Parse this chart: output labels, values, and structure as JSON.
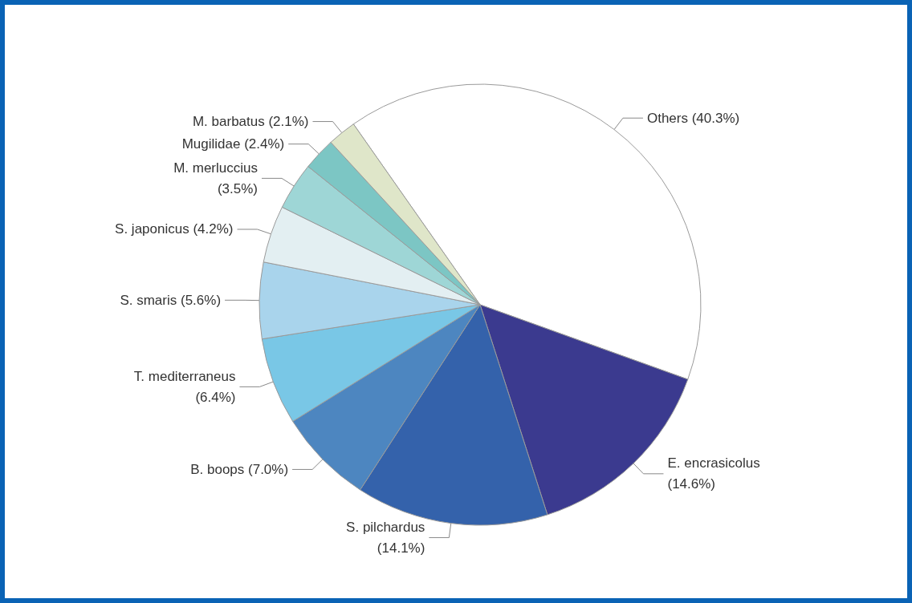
{
  "chart_data": {
    "type": "pie",
    "categories": [
      "Others",
      "E. encrasicolus",
      "S. pilchardus",
      "B. boops",
      "T. mediterraneus",
      "S. smaris",
      "S. japonicus",
      "M. merluccius",
      "Mugilidae",
      "M. barbatus"
    ],
    "values": [
      40.3,
      14.6,
      14.1,
      7.0,
      6.4,
      5.6,
      4.2,
      3.5,
      2.4,
      2.1
    ],
    "value_labels": [
      "(40.3%)",
      "(14.6%)",
      "(14.1%)",
      "(7.0%)",
      "(6.4%)",
      "(5.6%)",
      "(4.2%)",
      "(3.5%)",
      "(2.4%)",
      "(2.1%)"
    ],
    "colors": [
      "#ffffff",
      "#3b3a8f",
      "#3462ab",
      "#4d86c0",
      "#79c7e6",
      "#a9d4ec",
      "#e3eff2",
      "#9ed6d6",
      "#7cc6c4",
      "#dfe6c9"
    ],
    "legend": false
  }
}
